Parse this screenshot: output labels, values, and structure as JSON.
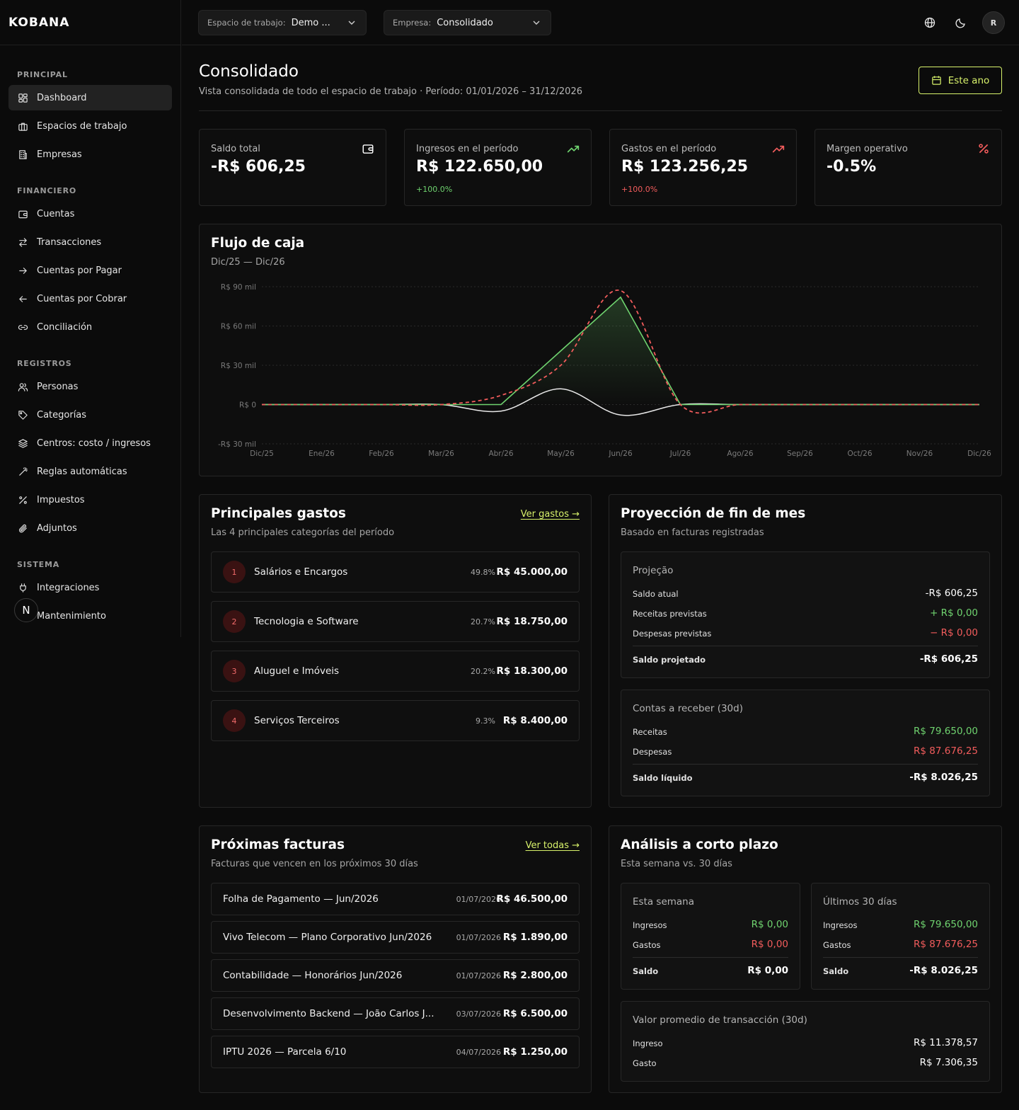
{
  "brand": "KOBANA",
  "sidebar": {
    "sections": [
      {
        "label": "PRINCIPAL",
        "items": [
          {
            "label": "Dashboard",
            "icon": "dashboard-icon",
            "active": true
          },
          {
            "label": "Espacios de trabajo",
            "icon": "briefcase-icon"
          },
          {
            "label": "Empresas",
            "icon": "building-icon"
          }
        ]
      },
      {
        "label": "FINANCIERO",
        "items": [
          {
            "label": "Cuentas",
            "icon": "wallet-icon"
          },
          {
            "label": "Transacciones",
            "icon": "arrows-swap-icon"
          },
          {
            "label": "Cuentas por Pagar",
            "icon": "arrow-right-icon"
          },
          {
            "label": "Cuentas por Cobrar",
            "icon": "arrow-left-icon"
          },
          {
            "label": "Conciliación",
            "icon": "link-icon"
          }
        ]
      },
      {
        "label": "REGISTROS",
        "items": [
          {
            "label": "Personas",
            "icon": "users-icon"
          },
          {
            "label": "Categorías",
            "icon": "tag-icon"
          },
          {
            "label": "Centros: costo / ingresos",
            "icon": "layers-icon"
          },
          {
            "label": "Reglas automáticas",
            "icon": "wand-icon"
          },
          {
            "label": "Impuestos",
            "icon": "percent-icon"
          },
          {
            "label": "Adjuntos",
            "icon": "paperclip-icon"
          }
        ]
      },
      {
        "label": "SISTEMA",
        "items": [
          {
            "label": "Integraciones",
            "icon": "plug-icon"
          },
          {
            "label": "Mantenimiento",
            "icon": "wrench-icon"
          }
        ]
      }
    ],
    "floating_badge": "N"
  },
  "topbar": {
    "workspace": {
      "label": "Espacio de trabajo:",
      "value": "Demo ..."
    },
    "company": {
      "label": "Empresa:",
      "value": "Consolidado"
    },
    "avatar": "R"
  },
  "header": {
    "title": "Consolidado",
    "subtitle": "Vista consolidada de todo el espacio de trabajo · Período: 01/01/2026 – 31/12/2026",
    "period_button": "Este ano"
  },
  "kpis": [
    {
      "label": "Saldo total",
      "value": "-R$ 606,25",
      "delta": "",
      "icon": "wallet-icon",
      "color": "#ffffff"
    },
    {
      "label": "Ingresos en el período",
      "value": "R$ 122.650,00",
      "delta": "+100.0%",
      "icon": "trending-up-icon",
      "color": "#6fd36f"
    },
    {
      "label": "Gastos en el período",
      "value": "R$ 123.256,25",
      "delta": "+100.0%",
      "icon": "trending-up-icon",
      "color": "#f25c5c"
    },
    {
      "label": "Margen operativo",
      "value": "-0.5%",
      "delta": "",
      "icon": "percent-icon",
      "color": "#f25c5c"
    }
  ],
  "cashflow": {
    "title": "Flujo de caja",
    "subtitle": "Dic/25 — Dic/26"
  },
  "chart_data": {
    "type": "line",
    "title": "Flujo de caja",
    "categories": [
      "Dic/25",
      "Ene/26",
      "Feb/26",
      "Mar/26",
      "Abr/26",
      "May/26",
      "Jun/26",
      "Jul/26",
      "Ago/26",
      "Sep/26",
      "Oct/26",
      "Nov/26",
      "Dic/26"
    ],
    "y_ticks": [
      "R$ 90 mil",
      "R$ 60 mil",
      "R$ 30 mil",
      "R$ 0",
      "-R$ 30 mil"
    ],
    "ylim": [
      -30000,
      90000
    ],
    "grid": true,
    "series": [
      {
        "values": [
          0,
          0,
          0,
          0,
          0,
          41000,
          82000,
          0,
          0,
          0,
          0,
          0,
          0
        ],
        "color": "#6fd36f",
        "style": "solid-area"
      },
      {
        "values": [
          0,
          0,
          0,
          0,
          7000,
          30000,
          87000,
          0,
          0,
          0,
          0,
          0,
          0
        ],
        "color": "#f25c5c",
        "style": "dashed"
      },
      {
        "values": [
          0,
          0,
          0,
          0,
          -5000,
          12000,
          -8000,
          0,
          0,
          0,
          0,
          0,
          0
        ],
        "color": "#e8e8e8",
        "style": "solid"
      }
    ]
  },
  "top_expenses": {
    "title": "Principales gastos",
    "subtitle": "Las 4 principales categorías del período",
    "link": "Ver gastos →",
    "items": [
      {
        "rank": "1",
        "name": "Salários e Encargos",
        "pct": "49.8%",
        "amount": "R$ 45.000,00"
      },
      {
        "rank": "2",
        "name": "Tecnologia e Software",
        "pct": "20.7%",
        "amount": "R$ 18.750,00"
      },
      {
        "rank": "3",
        "name": "Aluguel e Imóveis",
        "pct": "20.2%",
        "amount": "R$ 18.300,00"
      },
      {
        "rank": "4",
        "name": "Serviços Terceiros",
        "pct": "9.3%",
        "amount": "R$ 8.400,00"
      }
    ]
  },
  "projection": {
    "title": "Proyección de fin de mes",
    "subtitle": "Basado en facturas registradas",
    "box1": {
      "title": "Projeção",
      "rows": [
        {
          "label": "Saldo atual",
          "value": "-R$ 606,25"
        },
        {
          "label": "Receitas previstas",
          "value": "+ R$ 0,00"
        },
        {
          "label": "Despesas previstas",
          "value": "− R$ 0,00"
        }
      ],
      "total_label": "Saldo projetado",
      "total_value": "-R$ 606,25"
    },
    "box2": {
      "title": "Contas a receber (30d)",
      "rows": [
        {
          "label": "Receitas",
          "value": "R$ 79.650,00"
        },
        {
          "label": "Despesas",
          "value": "R$ 87.676,25"
        }
      ],
      "total_label": "Saldo líquido",
      "total_value": "-R$ 8.026,25"
    }
  },
  "invoices": {
    "title": "Próximas facturas",
    "subtitle": "Facturas que vencen en los próximos 30 días",
    "link": "Ver todas →",
    "items": [
      {
        "name": "Folha de Pagamento — Jun/2026",
        "date": "01/07/2026",
        "amount": "R$ 46.500,00"
      },
      {
        "name": "Vivo Telecom — Plano Corporativo Jun/2026",
        "date": "01/07/2026",
        "amount": "R$ 1.890,00"
      },
      {
        "name": "Contabilidade — Honorários Jun/2026",
        "date": "01/07/2026",
        "amount": "R$ 2.800,00"
      },
      {
        "name": "Desenvolvimento Backend — João Carlos J...",
        "date": "03/07/2026",
        "amount": "R$ 6.500,00"
      },
      {
        "name": "IPTU 2026 — Parcela 6/10",
        "date": "04/07/2026",
        "amount": "R$ 1.250,00"
      }
    ]
  },
  "analysis": {
    "title": "Análisis a corto plazo",
    "subtitle": "Esta semana vs. 30 días",
    "week": {
      "title": "Esta semana",
      "income_label": "Ingresos",
      "income": "R$ 0,00",
      "expense_label": "Gastos",
      "expense": "R$ 0,00",
      "balance_label": "Saldo",
      "balance": "R$ 0,00"
    },
    "month": {
      "title": "Últimos 30 días",
      "income_label": "Ingresos",
      "income": "R$ 79.650,00",
      "expense_label": "Gastos",
      "expense": "R$ 87.676,25",
      "balance_label": "Saldo",
      "balance": "-R$ 8.026,25"
    },
    "avg": {
      "title": "Valor promedio de transacción (30d)",
      "income_label": "Ingreso",
      "income": "R$ 11.378,57",
      "expense_label": "Gasto",
      "expense": "R$ 7.306,35"
    }
  }
}
